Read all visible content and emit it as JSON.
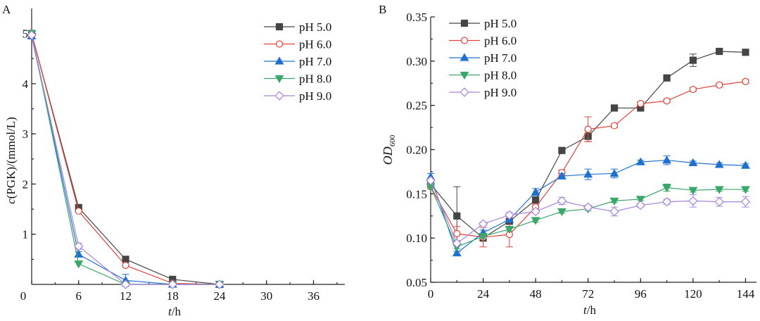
{
  "chart_data": [
    {
      "type": "line",
      "panel_label": "A",
      "xlabel_italic": "t",
      "xlabel_rest": "/h",
      "ylabel_italic": "c",
      "ylabel_rest": "(PGK)/(mmol/L)",
      "xlim": [
        0,
        40
      ],
      "ylim": [
        0,
        5.5
      ],
      "xticks": [
        0,
        6,
        12,
        18,
        24,
        30,
        36
      ],
      "yticks": [
        1,
        2,
        3,
        4,
        5
      ],
      "grid": false,
      "legend_position": "top-right",
      "x": [
        0,
        6,
        12,
        18,
        24
      ],
      "series": [
        {
          "name": "pH 5.0",
          "color": "#454545",
          "marker": "square-filled",
          "values": [
            5.0,
            1.53,
            0.5,
            0.1,
            0.0
          ]
        },
        {
          "name": "pH 6.0",
          "color": "#e0443c",
          "marker": "circle-open",
          "values": [
            5.0,
            1.46,
            0.38,
            0.02,
            0.0
          ]
        },
        {
          "name": "pH 7.0",
          "color": "#2070d0",
          "marker": "triangle-up-filled",
          "values": [
            4.95,
            0.6,
            0.08,
            0.0,
            0.0
          ],
          "errors": [
            0.03,
            0.05,
            0.12,
            0,
            0
          ]
        },
        {
          "name": "pH 8.0",
          "color": "#3aa66a",
          "marker": "triangle-down-filled",
          "values": [
            5.0,
            0.41,
            0.0,
            0.0,
            0.0
          ]
        },
        {
          "name": "pH 9.0",
          "color": "#a684dc",
          "marker": "diamond-open",
          "values": [
            4.97,
            0.76,
            0.0,
            0.0,
            0.0
          ],
          "errors": [
            0.03,
            0.06,
            0,
            0,
            0
          ]
        }
      ]
    },
    {
      "type": "line",
      "panel_label": "B",
      "xlabel_italic": "t",
      "xlabel_rest": "/h",
      "ylabel_italic": "OD",
      "ylabel_sub": "600",
      "xlim": [
        0,
        149
      ],
      "ylim": [
        0.05,
        0.35
      ],
      "xticks": [
        0,
        24,
        48,
        72,
        96,
        120,
        144
      ],
      "yticks": [
        "0.05",
        "0.10",
        "0.15",
        "0.20",
        "0.25",
        "0.30",
        "0.35"
      ],
      "grid": false,
      "legend_position": "top-left",
      "x": [
        0,
        12,
        24,
        36,
        48,
        60,
        72,
        84,
        96,
        108,
        120,
        132,
        144
      ],
      "series": [
        {
          "name": "pH 5.0",
          "color": "#454545",
          "marker": "square-filled",
          "values": [
            0.161,
            0.125,
            0.1,
            0.119,
            0.143,
            0.199,
            0.215,
            0.247,
            0.247,
            0.281,
            0.301,
            0.311,
            0.31
          ],
          "errors": [
            0.003,
            0.033,
            0.002,
            0.002,
            0.003,
            0.003,
            0.006,
            0.001,
            0.002,
            0.001,
            0.007,
            0.001,
            0.001
          ]
        },
        {
          "name": "pH 6.0",
          "color": "#e0443c",
          "marker": "circle-open",
          "values": [
            0.158,
            0.105,
            0.101,
            0.104,
            0.135,
            0.174,
            0.223,
            0.227,
            0.252,
            0.255,
            0.268,
            0.273,
            0.277
          ],
          "errors": [
            0.002,
            0.008,
            0.011,
            0.014,
            0.003,
            0.003,
            0.014,
            0.002,
            0.002,
            0.002,
            0.002,
            0.002,
            0.002
          ]
        },
        {
          "name": "pH 7.0",
          "color": "#2070d0",
          "marker": "triangle-up-filled",
          "values": [
            0.169,
            0.083,
            0.106,
            0.121,
            0.152,
            0.17,
            0.172,
            0.173,
            0.186,
            0.188,
            0.185,
            0.183,
            0.182
          ],
          "errors": [
            0.004,
            0.002,
            0.003,
            0.002,
            0.004,
            0.003,
            0.006,
            0.005,
            0.002,
            0.005,
            0.002,
            0.002,
            0.002
          ]
        },
        {
          "name": "pH 8.0",
          "color": "#3aa66a",
          "marker": "triangle-down-filled",
          "values": [
            0.158,
            0.09,
            0.102,
            0.11,
            0.12,
            0.13,
            0.133,
            0.142,
            0.144,
            0.157,
            0.154,
            0.155,
            0.155
          ],
          "errors": [
            0.002,
            0.002,
            0.002,
            0.002,
            0.002,
            0.002,
            0.002,
            0.002,
            0.002,
            0.004,
            0.002,
            0.002,
            0.002
          ]
        },
        {
          "name": "pH 9.0",
          "color": "#a684dc",
          "marker": "diamond-open",
          "values": [
            0.165,
            0.094,
            0.116,
            0.126,
            0.13,
            0.142,
            0.135,
            0.13,
            0.137,
            0.141,
            0.142,
            0.141,
            0.141
          ],
          "errors": [
            0.003,
            0.002,
            0.002,
            0.003,
            0.002,
            0.004,
            0.002,
            0.005,
            0.002,
            0.003,
            0.007,
            0.005,
            0.006
          ]
        }
      ]
    }
  ]
}
